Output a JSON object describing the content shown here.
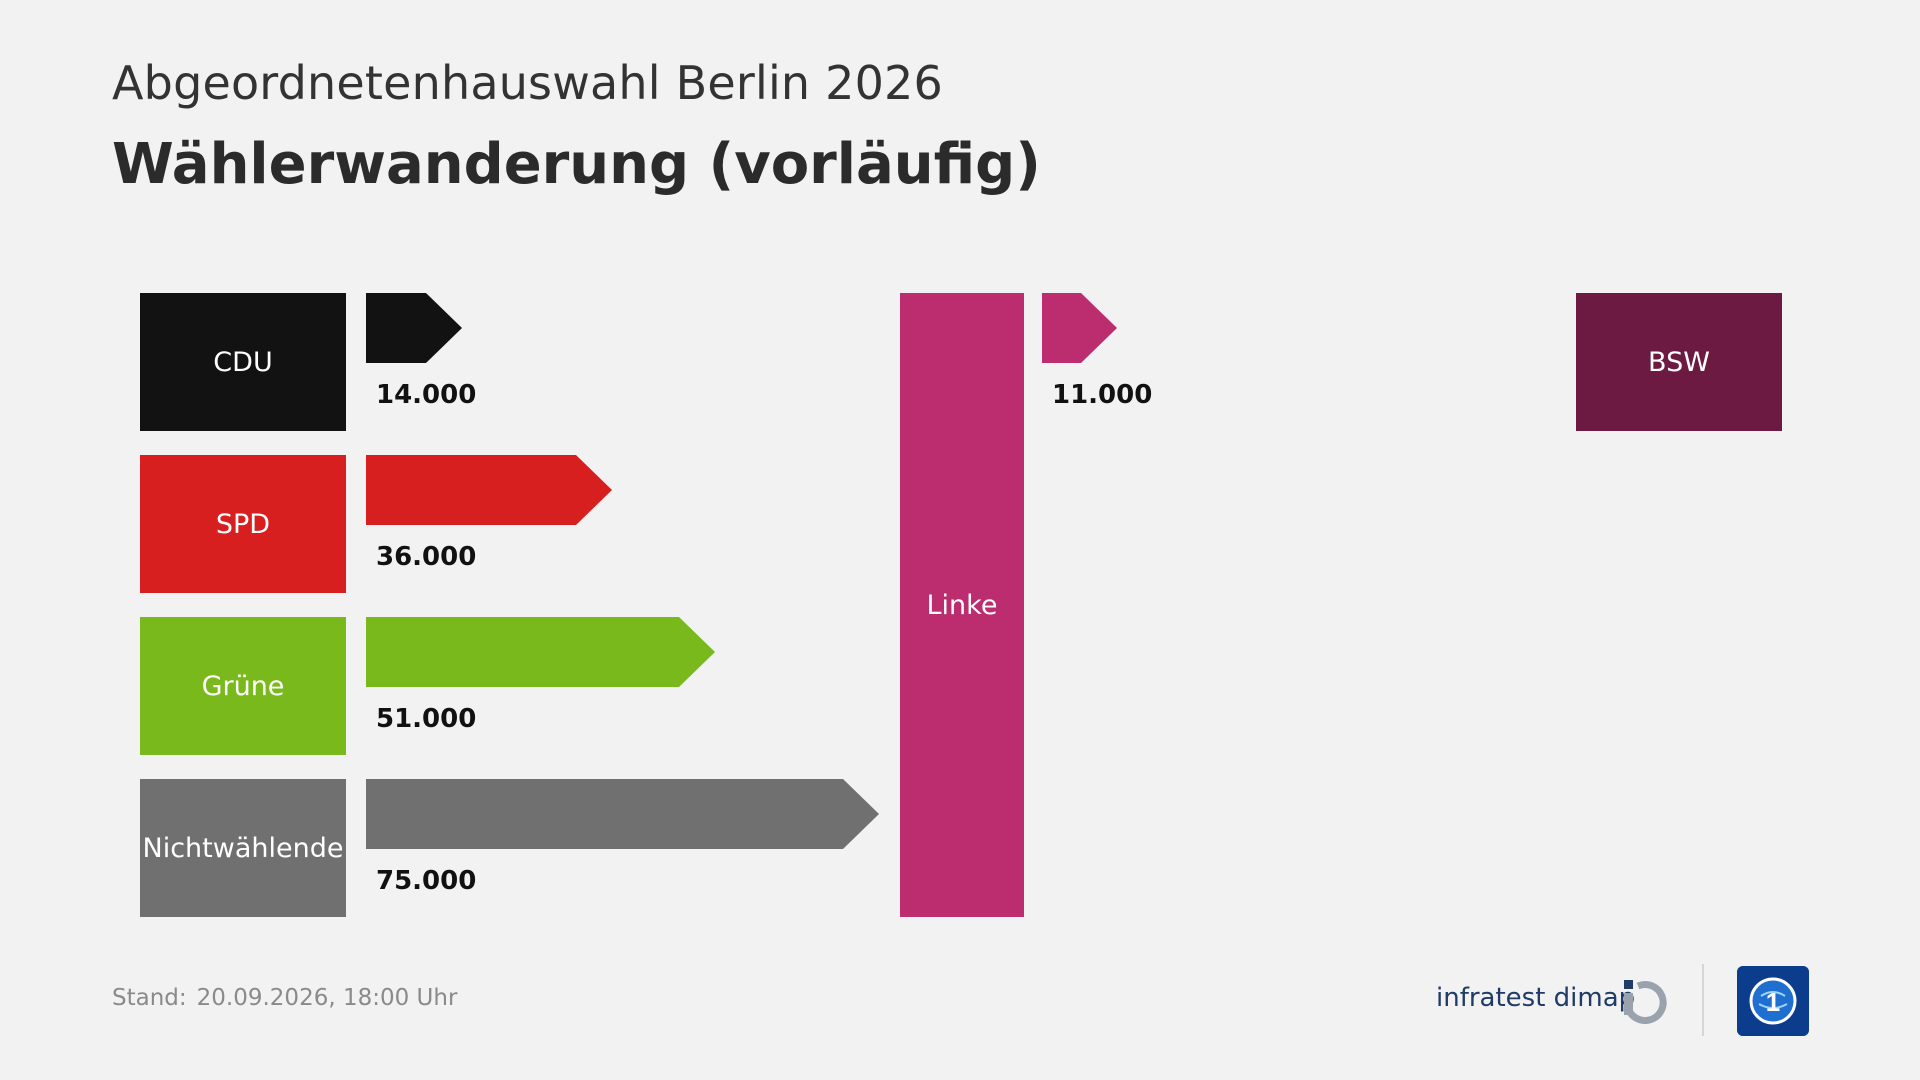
{
  "header": {
    "subtitle": "Abgeordnetenhauswahl Berlin 2026",
    "title": "Wählerwanderung (vorläufig)"
  },
  "chart_data": {
    "type": "bar",
    "target": "Linke",
    "categories": [
      "CDU",
      "SPD",
      "Grüne",
      "Nichtwählende"
    ],
    "values": [
      14000,
      36000,
      51000,
      75000
    ],
    "value_labels": [
      "14.000",
      "36.000",
      "51.000",
      "75.000"
    ],
    "outflows": [
      {
        "to": "BSW",
        "value": 11000,
        "value_label": "11.000"
      }
    ]
  },
  "colors": {
    "CDU": "#121212",
    "SPD": "#d71f1f",
    "Grüne": "#7ab91c",
    "Nichtwählende": "#707070",
    "Linke": "#bb2d6e",
    "BSW": "#6c1a42",
    "background": "#f2f2f2"
  },
  "footer": {
    "stand_label": "Stand:",
    "stand_value": "20.09.2026, 18:00 Uhr",
    "brand": "infratest dimap",
    "brand_icon": "infratest-dimap-logo-icon",
    "broadcaster_icon": "tagesschau-logo-icon"
  }
}
